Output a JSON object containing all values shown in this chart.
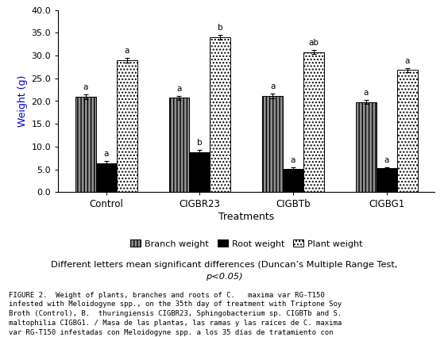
{
  "groups": [
    "Control",
    "CIGBR23",
    "CIGBTb",
    "CIGBG1"
  ],
  "branch_weight": [
    21.0,
    20.7,
    21.1,
    19.8
  ],
  "root_weight": [
    6.4,
    8.8,
    5.1,
    5.2
  ],
  "plant_weight": [
    29.0,
    34.0,
    30.8,
    26.8
  ],
  "branch_err": [
    0.5,
    0.4,
    0.5,
    0.4
  ],
  "root_err": [
    0.4,
    0.5,
    0.3,
    0.3
  ],
  "plant_err": [
    0.5,
    0.5,
    0.5,
    0.4
  ],
  "branch_letters": [
    "a",
    "a",
    "a",
    "a"
  ],
  "root_letters": [
    "a",
    "b",
    "a",
    "a"
  ],
  "plant_letters": [
    "a",
    "b",
    "ab",
    "a"
  ],
  "xlabel": "Treatments",
  "ylabel": "Weight (g)",
  "ylim": [
    0.0,
    40.0
  ],
  "yticks": [
    0.0,
    5.0,
    10.0,
    15.0,
    20.0,
    25.0,
    30.0,
    35.0,
    40.0
  ],
  "bar_width": 0.22,
  "branch_color": "#909090",
  "root_color": "#000000",
  "plant_color": "#ffffff",
  "branch_hatch": "||||",
  "root_hatch": "",
  "plant_hatch": "....",
  "legend_labels": [
    "Branch weight",
    "Root weight",
    "Plant weight"
  ],
  "note_line1": "Different letters mean significant differences (Duncan’s Multiple Range Test,",
  "note_line2": "p<0.05)",
  "ylabel_color": "#0000cc",
  "bar_edgecolor": "#000000",
  "background_color": "#ffffff"
}
